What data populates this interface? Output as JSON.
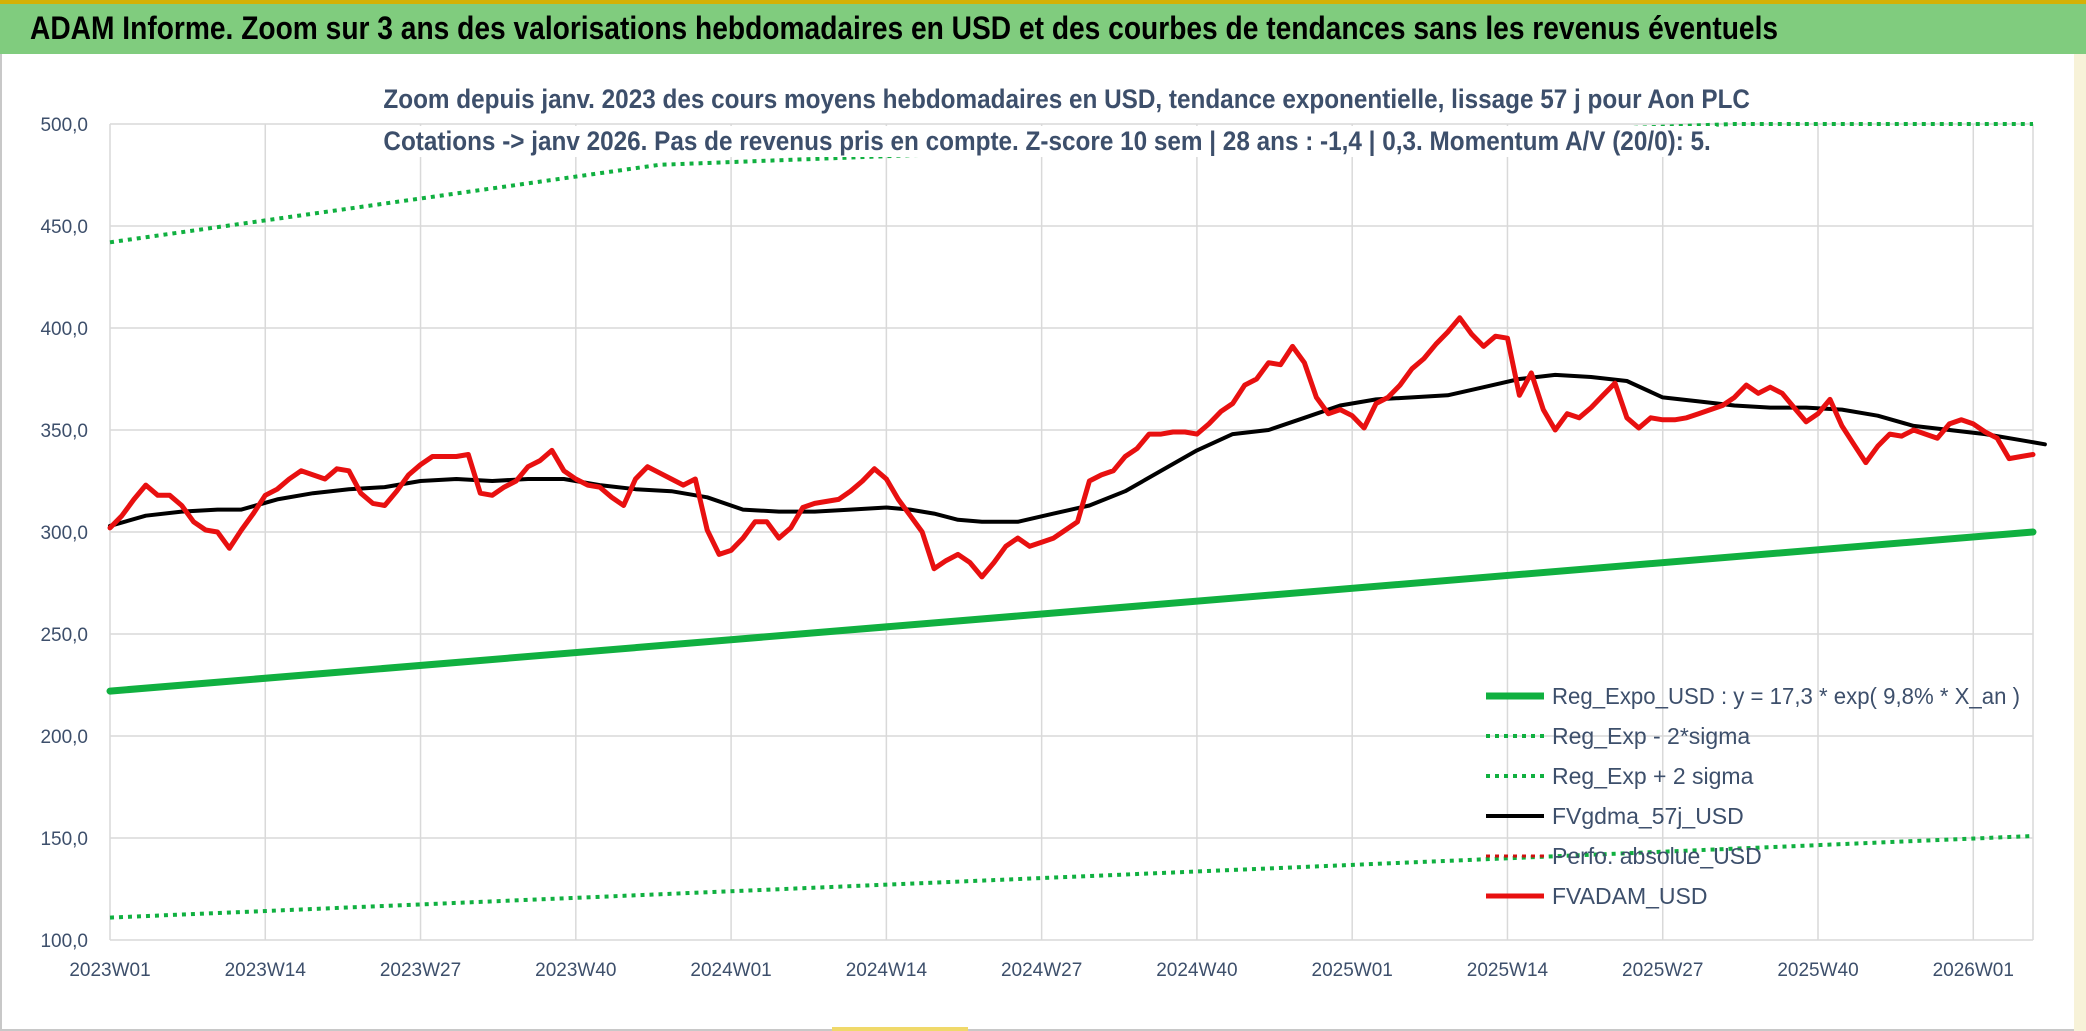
{
  "header": {
    "title": "ADAM Informe. Zoom sur 3 ans des valorisations hebdomadaires en USD et des courbes de tendances sans les revenus éventuels"
  },
  "chart_data": {
    "type": "line",
    "title_line1": "Zoom depuis janv. 2023 des cours moyens hebdomadaires en USD, tendance exponentielle, lissage 57 j pour Aon PLC",
    "title_line2": "Cotations -> janv 2026. Pas de revenus pris en compte. Z-score 10 sem | 28 ans : -1,4 | 0,3. Momentum A/V (20/0): 5.",
    "ylim": [
      100,
      500
    ],
    "yticks": [
      "100,0",
      "150,0",
      "200,0",
      "250,0",
      "300,0",
      "350,0",
      "400,0",
      "450,0",
      "500,0"
    ],
    "xlim": [
      0,
      162
    ],
    "xticks": [
      {
        "label": "2023W01",
        "pos": 0
      },
      {
        "label": "2023W14",
        "pos": 13
      },
      {
        "label": "2023W27",
        "pos": 26
      },
      {
        "label": "2023W40",
        "pos": 39
      },
      {
        "label": "2024W01",
        "pos": 52
      },
      {
        "label": "2024W14",
        "pos": 65
      },
      {
        "label": "2024W27",
        "pos": 78
      },
      {
        "label": "2024W40",
        "pos": 91
      },
      {
        "label": "2025W01",
        "pos": 104
      },
      {
        "label": "2025W14",
        "pos": 117
      },
      {
        "label": "2025W27",
        "pos": 130
      },
      {
        "label": "2025W40",
        "pos": 143
      },
      {
        "label": "2026W01",
        "pos": 156
      }
    ],
    "legend_position": "bottom-right",
    "series": [
      {
        "name": "Reg_Expo_USD : y = 17,3 * exp( 9,8% *  X_an )",
        "color": "#10b040",
        "style": "solid",
        "width": 7,
        "points": [
          [
            0,
            222
          ],
          [
            161,
            300
          ]
        ]
      },
      {
        "name": "Reg_Exp - 2*sigma",
        "color": "#10b040",
        "style": "dotted",
        "width": 4,
        "points": [
          [
            0,
            111
          ],
          [
            161,
            151
          ]
        ]
      },
      {
        "name": "Reg_Exp + 2 sigma",
        "color": "#10b040",
        "style": "dotted",
        "width": 4,
        "points": [
          [
            0,
            442
          ],
          [
            46,
            480
          ],
          [
            136,
            500
          ],
          [
            161,
            500
          ]
        ]
      },
      {
        "name": "FVgdma_57j_USD",
        "color": "#000000",
        "style": "solid",
        "width": 4,
        "points": [
          [
            0,
            303
          ],
          [
            3,
            308
          ],
          [
            6,
            310
          ],
          [
            9,
            311
          ],
          [
            11,
            311
          ],
          [
            14,
            316
          ],
          [
            17,
            319
          ],
          [
            20,
            321
          ],
          [
            23,
            322
          ],
          [
            26,
            325
          ],
          [
            29,
            326
          ],
          [
            32,
            325
          ],
          [
            35,
            326
          ],
          [
            38,
            326
          ],
          [
            41,
            323
          ],
          [
            44,
            321
          ],
          [
            47,
            320
          ],
          [
            50,
            317
          ],
          [
            53,
            311
          ],
          [
            56,
            310
          ],
          [
            59,
            310
          ],
          [
            62,
            311
          ],
          [
            65,
            312
          ],
          [
            67,
            311
          ],
          [
            69,
            309
          ],
          [
            71,
            306
          ],
          [
            73,
            305
          ],
          [
            76,
            305
          ],
          [
            79,
            309
          ],
          [
            82,
            313
          ],
          [
            85,
            320
          ],
          [
            88,
            330
          ],
          [
            91,
            340
          ],
          [
            94,
            348
          ],
          [
            97,
            350
          ],
          [
            100,
            356
          ],
          [
            103,
            362
          ],
          [
            106,
            365
          ],
          [
            109,
            366
          ],
          [
            112,
            367
          ],
          [
            115,
            371
          ],
          [
            118,
            375
          ],
          [
            121,
            377
          ],
          [
            124,
            376
          ],
          [
            127,
            374
          ],
          [
            130,
            366
          ],
          [
            133,
            364
          ],
          [
            136,
            362
          ],
          [
            139,
            361
          ],
          [
            142,
            361
          ],
          [
            145,
            360
          ],
          [
            148,
            357
          ],
          [
            151,
            352
          ],
          [
            154,
            350
          ],
          [
            157,
            348
          ],
          [
            160,
            345
          ],
          [
            162,
            343
          ]
        ]
      },
      {
        "name": "Perfo. absolue_USD",
        "color": "#d01010",
        "style": "dotted",
        "width": 3,
        "points": []
      },
      {
        "name": "FVADAM_USD",
        "color": "#e81010",
        "style": "solid",
        "width": 5,
        "points": [
          [
            0,
            302
          ],
          [
            1,
            308
          ],
          [
            2,
            316
          ],
          [
            3,
            323
          ],
          [
            4,
            318
          ],
          [
            5,
            318
          ],
          [
            6,
            313
          ],
          [
            7,
            305
          ],
          [
            8,
            301
          ],
          [
            9,
            300
          ],
          [
            10,
            292
          ],
          [
            11,
            301
          ],
          [
            12,
            309
          ],
          [
            13,
            318
          ],
          [
            14,
            321
          ],
          [
            15,
            326
          ],
          [
            16,
            330
          ],
          [
            17,
            328
          ],
          [
            18,
            326
          ],
          [
            19,
            331
          ],
          [
            20,
            330
          ],
          [
            21,
            319
          ],
          [
            22,
            314
          ],
          [
            23,
            313
          ],
          [
            24,
            320
          ],
          [
            25,
            328
          ],
          [
            26,
            333
          ],
          [
            27,
            337
          ],
          [
            28,
            337
          ],
          [
            29,
            337
          ],
          [
            30,
            338
          ],
          [
            31,
            319
          ],
          [
            32,
            318
          ],
          [
            33,
            322
          ],
          [
            34,
            325
          ],
          [
            35,
            332
          ],
          [
            36,
            335
          ],
          [
            37,
            340
          ],
          [
            38,
            330
          ],
          [
            39,
            326
          ],
          [
            40,
            323
          ],
          [
            41,
            322
          ],
          [
            42,
            317
          ],
          [
            43,
            313
          ],
          [
            44,
            326
          ],
          [
            45,
            332
          ],
          [
            46,
            329
          ],
          [
            47,
            326
          ],
          [
            48,
            323
          ],
          [
            49,
            326
          ],
          [
            50,
            301
          ],
          [
            51,
            289
          ],
          [
            52,
            291
          ],
          [
            53,
            297
          ],
          [
            54,
            305
          ],
          [
            55,
            305
          ],
          [
            56,
            297
          ],
          [
            57,
            302
          ],
          [
            58,
            312
          ],
          [
            59,
            314
          ],
          [
            60,
            315
          ],
          [
            61,
            316
          ],
          [
            62,
            320
          ],
          [
            63,
            325
          ],
          [
            64,
            331
          ],
          [
            65,
            326
          ],
          [
            66,
            316
          ],
          [
            67,
            308
          ],
          [
            68,
            300
          ],
          [
            69,
            282
          ],
          [
            70,
            286
          ],
          [
            71,
            289
          ],
          [
            72,
            285
          ],
          [
            73,
            278
          ],
          [
            74,
            285
          ],
          [
            75,
            293
          ],
          [
            76,
            297
          ],
          [
            77,
            293
          ],
          [
            78,
            295
          ],
          [
            79,
            297
          ],
          [
            80,
            301
          ],
          [
            81,
            305
          ],
          [
            82,
            325
          ],
          [
            83,
            328
          ],
          [
            84,
            330
          ],
          [
            85,
            337
          ],
          [
            86,
            341
          ],
          [
            87,
            348
          ],
          [
            88,
            348
          ],
          [
            89,
            349
          ],
          [
            90,
            349
          ],
          [
            91,
            348
          ],
          [
            92,
            353
          ],
          [
            93,
            359
          ],
          [
            94,
            363
          ],
          [
            95,
            372
          ],
          [
            96,
            375
          ],
          [
            97,
            383
          ],
          [
            98,
            382
          ],
          [
            99,
            391
          ],
          [
            100,
            383
          ],
          [
            101,
            366
          ],
          [
            102,
            358
          ],
          [
            103,
            360
          ],
          [
            104,
            357
          ],
          [
            105,
            351
          ],
          [
            106,
            363
          ],
          [
            107,
            366
          ],
          [
            108,
            372
          ],
          [
            109,
            380
          ],
          [
            110,
            385
          ],
          [
            111,
            392
          ],
          [
            112,
            398
          ],
          [
            113,
            405
          ],
          [
            114,
            397
          ],
          [
            115,
            391
          ],
          [
            116,
            396
          ],
          [
            117,
            395
          ],
          [
            118,
            367
          ],
          [
            119,
            378
          ],
          [
            120,
            360
          ],
          [
            121,
            350
          ],
          [
            122,
            358
          ],
          [
            123,
            356
          ],
          [
            124,
            361
          ],
          [
            125,
            367
          ],
          [
            126,
            373
          ],
          [
            127,
            356
          ],
          [
            128,
            351
          ],
          [
            129,
            356
          ],
          [
            130,
            355
          ],
          [
            131,
            355
          ],
          [
            132,
            356
          ],
          [
            133,
            358
          ],
          [
            134,
            360
          ],
          [
            135,
            362
          ],
          [
            136,
            366
          ],
          [
            137,
            372
          ],
          [
            138,
            368
          ],
          [
            139,
            371
          ],
          [
            140,
            368
          ],
          [
            141,
            361
          ],
          [
            142,
            354
          ],
          [
            143,
            358
          ],
          [
            144,
            365
          ],
          [
            145,
            352
          ],
          [
            146,
            343
          ],
          [
            147,
            334
          ],
          [
            148,
            342
          ],
          [
            149,
            348
          ],
          [
            150,
            347
          ],
          [
            151,
            350
          ],
          [
            152,
            348
          ],
          [
            153,
            346
          ],
          [
            154,
            353
          ],
          [
            155,
            355
          ],
          [
            156,
            353
          ],
          [
            157,
            349
          ],
          [
            158,
            346
          ],
          [
            159,
            336
          ],
          [
            160,
            337
          ],
          [
            161,
            338
          ]
        ]
      }
    ]
  }
}
